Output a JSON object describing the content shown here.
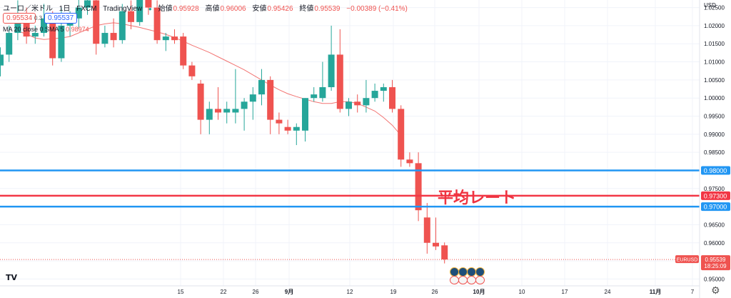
{
  "header": {
    "symbol": "ユーロ／米ドル",
    "interval": "1日",
    "exchange": "FXCM",
    "source": "TradingView",
    "open_label": "始値",
    "open_value": "0.95928",
    "high_label": "高値",
    "high_value": "0.96006",
    "low_label": "安値",
    "low_value": "0.95426",
    "close_label": "終値",
    "close_value": "0.95539",
    "change_value": "−0.00389 (−0.41%)",
    "bid": "0.95534",
    "spread": "0.3",
    "ask": "0.95537"
  },
  "ma_legend": {
    "text": "MA 20 close 0 SMA 5",
    "value": "0.98974"
  },
  "annotation": {
    "text": "平均レート"
  },
  "price_axis": {
    "unit": "USD",
    "ticks": [
      "1.02500",
      "1.02000",
      "1.01500",
      "1.01000",
      "1.00500",
      "1.00000",
      "0.99500",
      "0.99000",
      "0.98500",
      "0.98000",
      "0.97500",
      "0.97000",
      "0.96500",
      "0.96000",
      "0.95500",
      "0.95000"
    ],
    "current_symbol": "EURUSD",
    "current_price": "0.95539",
    "countdown": "18:25:09"
  },
  "time_axis": {
    "labels": [
      "15",
      "22",
      "26",
      "9月",
      "12",
      "19",
      "26",
      "10月",
      "10",
      "17",
      "24",
      "11月",
      "7"
    ]
  },
  "colors": {
    "up": "#26a69a",
    "down": "#ef5350",
    "ma_line": "#ef5350",
    "blue_line": "#2196f3",
    "red_line": "#f23645"
  },
  "chart_data": {
    "type": "candlestick",
    "symbol": "EURUSD",
    "ylim": [
      0.9485,
      1.0265
    ],
    "horizontal_lines": [
      {
        "price": 0.98,
        "label": "0.98000",
        "color": "blue"
      },
      {
        "price": 0.973,
        "label": "0.97300",
        "color": "red"
      },
      {
        "price": 0.97,
        "label": "0.97000",
        "color": "blue"
      }
    ],
    "candles": [
      {
        "i": 0,
        "o": 1.009,
        "h": 1.014,
        "l": 1.006,
        "c": 1.012
      },
      {
        "i": 1,
        "o": 1.012,
        "h": 1.02,
        "l": 1.01,
        "c": 1.018
      },
      {
        "i": 2,
        "o": 1.018,
        "h": 1.027,
        "l": 1.016,
        "c": 1.023
      },
      {
        "i": 3,
        "o": 1.023,
        "h": 1.025,
        "l": 1.015,
        "c": 1.017
      },
      {
        "i": 4,
        "o": 1.017,
        "h": 1.02,
        "l": 1.015,
        "c": 1.018
      },
      {
        "i": 5,
        "o": 1.018,
        "h": 1.026,
        "l": 1.017,
        "c": 1.022
      },
      {
        "i": 6,
        "o": 1.022,
        "h": 1.024,
        "l": 1.009,
        "c": 1.011
      },
      {
        "i": 7,
        "o": 1.011,
        "h": 1.025,
        "l": 1.01,
        "c": 1.02
      },
      {
        "i": 8,
        "o": 1.02,
        "h": 1.024,
        "l": 1.017,
        "c": 1.022
      },
      {
        "i": 9,
        "o": 1.022,
        "h": 1.029,
        "l": 1.019,
        "c": 1.025
      },
      {
        "i": 10,
        "o": 1.025,
        "h": 1.03,
        "l": 1.023,
        "c": 1.027
      },
      {
        "i": 11,
        "o": 1.027,
        "h": 1.029,
        "l": 1.012,
        "c": 1.015
      },
      {
        "i": 12,
        "o": 1.015,
        "h": 1.02,
        "l": 1.014,
        "c": 1.018
      },
      {
        "i": 13,
        "o": 1.018,
        "h": 1.022,
        "l": 1.014,
        "c": 1.016
      },
      {
        "i": 14,
        "o": 1.016,
        "h": 1.026,
        "l": 1.015,
        "c": 1.024
      },
      {
        "i": 15,
        "o": 1.024,
        "h": 1.027,
        "l": 1.019,
        "c": 1.021
      },
      {
        "i": 16,
        "o": 1.021,
        "h": 1.03,
        "l": 1.02,
        "c": 1.029
      },
      {
        "i": 17,
        "o": 1.029,
        "h": 1.032,
        "l": 1.023,
        "c": 1.025
      },
      {
        "i": 18,
        "o": 1.025,
        "h": 1.027,
        "l": 1.015,
        "c": 1.016
      },
      {
        "i": 19,
        "o": 1.016,
        "h": 1.018,
        "l": 1.013,
        "c": 1.017
      },
      {
        "i": 20,
        "o": 1.017,
        "h": 1.019,
        "l": 1.015,
        "c": 1.016
      },
      {
        "i": 21,
        "o": 1.017,
        "h": 1.018,
        "l": 1.008,
        "c": 1.009
      },
      {
        "i": 22,
        "o": 1.009,
        "h": 1.01,
        "l": 1.005,
        "c": 1.006
      },
      {
        "i": 23,
        "o": 1.004,
        "h": 1.005,
        "l": 0.99,
        "c": 0.994
      },
      {
        "i": 24,
        "o": 0.994,
        "h": 0.999,
        "l": 0.99,
        "c": 0.997
      },
      {
        "i": 25,
        "o": 0.997,
        "h": 1.003,
        "l": 0.994,
        "c": 0.996
      },
      {
        "i": 26,
        "o": 0.996,
        "h": 0.999,
        "l": 0.993,
        "c": 0.997
      },
      {
        "i": 27,
        "o": 0.996,
        "h": 1.008,
        "l": 0.993,
        "c": 0.997
      },
      {
        "i": 28,
        "o": 0.997,
        "h": 1.0,
        "l": 0.991,
        "c": 0.999
      },
      {
        "i": 29,
        "o": 0.999,
        "h": 1.003,
        "l": 0.994,
        "c": 1.001
      },
      {
        "i": 30,
        "o": 1.001,
        "h": 1.008,
        "l": 0.998,
        "c": 1.005
      },
      {
        "i": 31,
        "o": 1.005,
        "h": 1.006,
        "l": 0.99,
        "c": 0.994
      },
      {
        "i": 32,
        "o": 0.994,
        "h": 0.996,
        "l": 0.99,
        "c": 0.993
      },
      {
        "i": 33,
        "o": 0.992,
        "h": 0.994,
        "l": 0.99,
        "c": 0.991
      },
      {
        "i": 34,
        "o": 0.991,
        "h": 0.993,
        "l": 0.987,
        "c": 0.992
      },
      {
        "i": 35,
        "o": 0.991,
        "h": 1.0,
        "l": 0.988,
        "c": 1.0
      },
      {
        "i": 36,
        "o": 1.0,
        "h": 1.003,
        "l": 0.999,
        "c": 1.001
      },
      {
        "i": 37,
        "o": 1.0,
        "h": 1.01,
        "l": 0.999,
        "c": 1.003
      },
      {
        "i": 38,
        "o": 1.003,
        "h": 1.02,
        "l": 1.002,
        "c": 1.012
      },
      {
        "i": 39,
        "o": 1.012,
        "h": 1.019,
        "l": 0.996,
        "c": 0.997
      },
      {
        "i": 40,
        "o": 0.997,
        "h": 1.0,
        "l": 0.995,
        "c": 0.999
      },
      {
        "i": 41,
        "o": 0.999,
        "h": 1.001,
        "l": 0.996,
        "c": 0.998
      },
      {
        "i": 42,
        "o": 0.998,
        "h": 1.005,
        "l": 0.996,
        "c": 1.0
      },
      {
        "i": 43,
        "o": 1.0,
        "h": 1.004,
        "l": 0.999,
        "c": 1.002
      },
      {
        "i": 44,
        "o": 1.002,
        "h": 1.004,
        "l": 0.999,
        "c": 1.003
      },
      {
        "i": 45,
        "o": 1.003,
        "h": 1.005,
        "l": 0.996,
        "c": 0.997
      },
      {
        "i": 46,
        "o": 0.997,
        "h": 0.998,
        "l": 0.981,
        "c": 0.983
      },
      {
        "i": 47,
        "o": 0.983,
        "h": 0.985,
        "l": 0.981,
        "c": 0.982
      },
      {
        "i": 48,
        "o": 0.982,
        "h": 0.985,
        "l": 0.966,
        "c": 0.969
      },
      {
        "i": 49,
        "o": 0.967,
        "h": 0.971,
        "l": 0.957,
        "c": 0.96
      },
      {
        "i": 50,
        "o": 0.96,
        "h": 0.967,
        "l": 0.958,
        "c": 0.959
      },
      {
        "i": 51,
        "o": 0.9593,
        "h": 0.9601,
        "l": 0.9543,
        "c": 0.9554
      }
    ],
    "ma": {
      "name": "MA 20 close 0 SMA 5",
      "start_index": 2,
      "values": [
        1.0185,
        1.0177,
        1.0166,
        1.0162,
        1.0164,
        1.0166,
        1.017,
        1.018,
        1.019,
        1.02,
        1.0205,
        1.0208,
        1.0205,
        1.02,
        1.0195,
        1.0189,
        1.0183,
        1.0176,
        1.0167,
        1.0157,
        1.0146,
        1.0136,
        1.0126,
        1.0114,
        1.0102,
        1.009,
        1.0078,
        1.0064,
        1.005,
        1.0036,
        1.0023,
        1.0012,
        1.0004,
        0.9997,
        0.999,
        0.9985,
        0.9985,
        0.999,
        0.999,
        0.9985,
        0.9975,
        0.9964,
        0.9946,
        0.9925,
        0.9897
      ]
    }
  }
}
